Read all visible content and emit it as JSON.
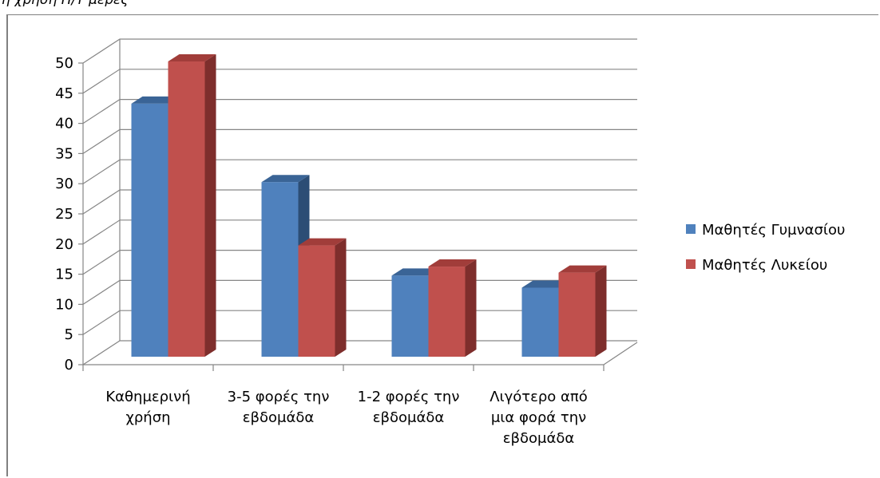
{
  "caption": "η χρήση Η/Υ μέρες",
  "chart_data": {
    "type": "bar",
    "variant": "3d-clustered-column",
    "categories": [
      [
        "Καθημερινή",
        "χρήση"
      ],
      [
        "3-5 φορές την",
        "εβδομάδα"
      ],
      [
        "1-2 φορές την",
        "εβδομάδα"
      ],
      [
        "Λιγότερο από",
        "μια φορά την",
        "εβδομάδα"
      ]
    ],
    "series": [
      {
        "name": "Μαθητές Γυμνασίου",
        "values": [
          43,
          30,
          14.5,
          12.5
        ],
        "color": "#4F81BD",
        "top": "#3A6496",
        "side": "#2C4D75"
      },
      {
        "name": "Μαθητές Λυκείου",
        "values": [
          50,
          19.5,
          16,
          15
        ],
        "color": "#C0504D",
        "top": "#A13D3A",
        "side": "#7E2E2C"
      }
    ],
    "ylim": [
      0,
      50
    ],
    "yticks": [
      "0",
      "5",
      "10",
      "15",
      "20",
      "25",
      "30",
      "35",
      "40",
      "45",
      "50"
    ],
    "grid": true,
    "legend": "right",
    "axis_color": "#868686",
    "grid_color": "#868686"
  }
}
